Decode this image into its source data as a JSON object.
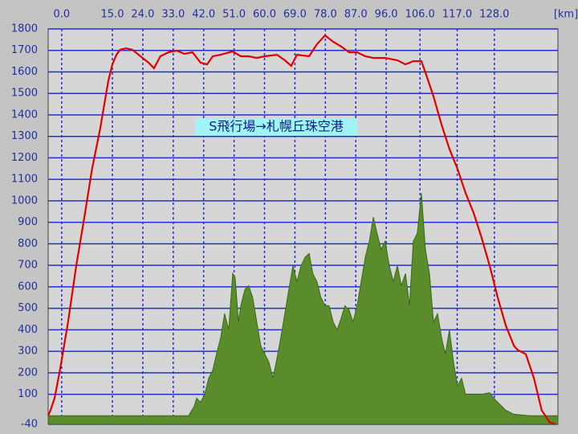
{
  "chart_data": {
    "type": "line",
    "annotation": "S飛行場→札幌丘珠空港",
    "xlabel": "[km]",
    "xlim": [
      -4,
      146.8
    ],
    "ylim": [
      -40,
      1800
    ],
    "xticks": [
      {
        "value": 0,
        "label": "0.0"
      },
      {
        "value": 15,
        "label": "15.0"
      },
      {
        "value": 24,
        "label": "24.0"
      },
      {
        "value": 33,
        "label": "33.0"
      },
      {
        "value": 42,
        "label": "42.0"
      },
      {
        "value": 51,
        "label": "51.0"
      },
      {
        "value": 60,
        "label": "60.0"
      },
      {
        "value": 69,
        "label": "69.0"
      },
      {
        "value": 78,
        "label": "78.0"
      },
      {
        "value": 87,
        "label": "87.0"
      },
      {
        "value": 96,
        "label": "96.0"
      },
      {
        "value": 106,
        "label": "106.0"
      },
      {
        "value": 117,
        "label": "117.0"
      },
      {
        "value": 128,
        "label": "128.0"
      }
    ],
    "yticks": [
      -40,
      100,
      200,
      300,
      400,
      500,
      600,
      700,
      800,
      900,
      1000,
      1100,
      1200,
      1300,
      1400,
      1500,
      1600,
      1700,
      1800
    ],
    "grid": true,
    "series": [
      {
        "color": "#5a8c2c",
        "fill": true,
        "x": [
          -4.0,
          37.5,
          39.2,
          39.9,
          41.1,
          42.3,
          43.5,
          44.7,
          45.8,
          47.0,
          48.2,
          49.4,
          50.6,
          51.3,
          52.3,
          53.0,
          54.2,
          55.3,
          56.5,
          57.7,
          58.9,
          60.1,
          61.3,
          62.5,
          63.7,
          64.8,
          66.0,
          67.2,
          68.4,
          69.6,
          70.8,
          72.0,
          73.2,
          74.3,
          75.5,
          76.7,
          77.9,
          79.1,
          80.3,
          81.5,
          82.7,
          83.8,
          85.0,
          86.2,
          87.4,
          88.6,
          89.8,
          91.0,
          92.2,
          93.3,
          94.5,
          95.7,
          96.9,
          98.1,
          99.3,
          100.5,
          101.7,
          102.9,
          104.0,
          105.2,
          106.4,
          107.6,
          108.8,
          110.0,
          111.2,
          112.4,
          113.5,
          114.7,
          115.9,
          117.1,
          118.3,
          119.5,
          121.9,
          124.2,
          126.6,
          127.8,
          129.0,
          131.4,
          133.8,
          138.5,
          146.8
        ],
        "values": [
          0,
          0,
          44,
          82,
          63,
          100,
          175,
          213,
          287,
          362,
          475,
          400,
          662,
          643,
          437,
          512,
          587,
          606,
          550,
          437,
          325,
          287,
          250,
          175,
          269,
          362,
          475,
          587,
          699,
          624,
          699,
          737,
          755,
          662,
          624,
          550,
          512,
          512,
          437,
          400,
          456,
          512,
          493,
          437,
          512,
          624,
          737,
          812,
          924,
          849,
          774,
          812,
          699,
          624,
          699,
          606,
          662,
          512,
          812,
          849,
          1036,
          774,
          662,
          437,
          475,
          362,
          287,
          400,
          250,
          138,
          175,
          100,
          100,
          100,
          107,
          82,
          63,
          25,
          7,
          0,
          0
        ]
      },
      {
        "color": "#e00000",
        "fill": false,
        "x": [
          -4.0,
          -3.3,
          -2.1,
          -0.5,
          1.9,
          4.3,
          6.7,
          9.0,
          11.4,
          12.6,
          13.8,
          15.0,
          16.2,
          17.3,
          19.0,
          20.9,
          23.3,
          25.7,
          27.3,
          29.2,
          31.6,
          34.0,
          36.3,
          38.7,
          41.1,
          43.0,
          44.7,
          47.0,
          50.6,
          53.0,
          55.3,
          57.7,
          60.1,
          63.7,
          66.0,
          67.9,
          69.6,
          73.2,
          75.5,
          77.9,
          80.3,
          82.7,
          85.0,
          87.4,
          89.8,
          92.2,
          95.7,
          99.3,
          101.7,
          104.0,
          106.4,
          107.6,
          110.0,
          112.4,
          114.7,
          117.1,
          119.5,
          121.9,
          124.2,
          126.6,
          129.0,
          131.4,
          133.8,
          134.9,
          137.3,
          139.7,
          142.0,
          144.4,
          146.0
        ],
        "values": [
          0,
          25,
          82,
          213,
          437,
          699,
          924,
          1149,
          1336,
          1448,
          1560,
          1635,
          1680,
          1703,
          1710,
          1703,
          1673,
          1643,
          1617,
          1673,
          1691,
          1699,
          1684,
          1691,
          1643,
          1635,
          1673,
          1680,
          1695,
          1673,
          1673,
          1665,
          1673,
          1680,
          1654,
          1628,
          1680,
          1673,
          1729,
          1770,
          1740,
          1718,
          1691,
          1691,
          1673,
          1665,
          1665,
          1654,
          1635,
          1650,
          1650,
          1598,
          1486,
          1354,
          1242,
          1149,
          1036,
          943,
          830,
          699,
          550,
          418,
          325,
          306,
          287,
          175,
          25,
          -31,
          -38
        ]
      }
    ]
  }
}
